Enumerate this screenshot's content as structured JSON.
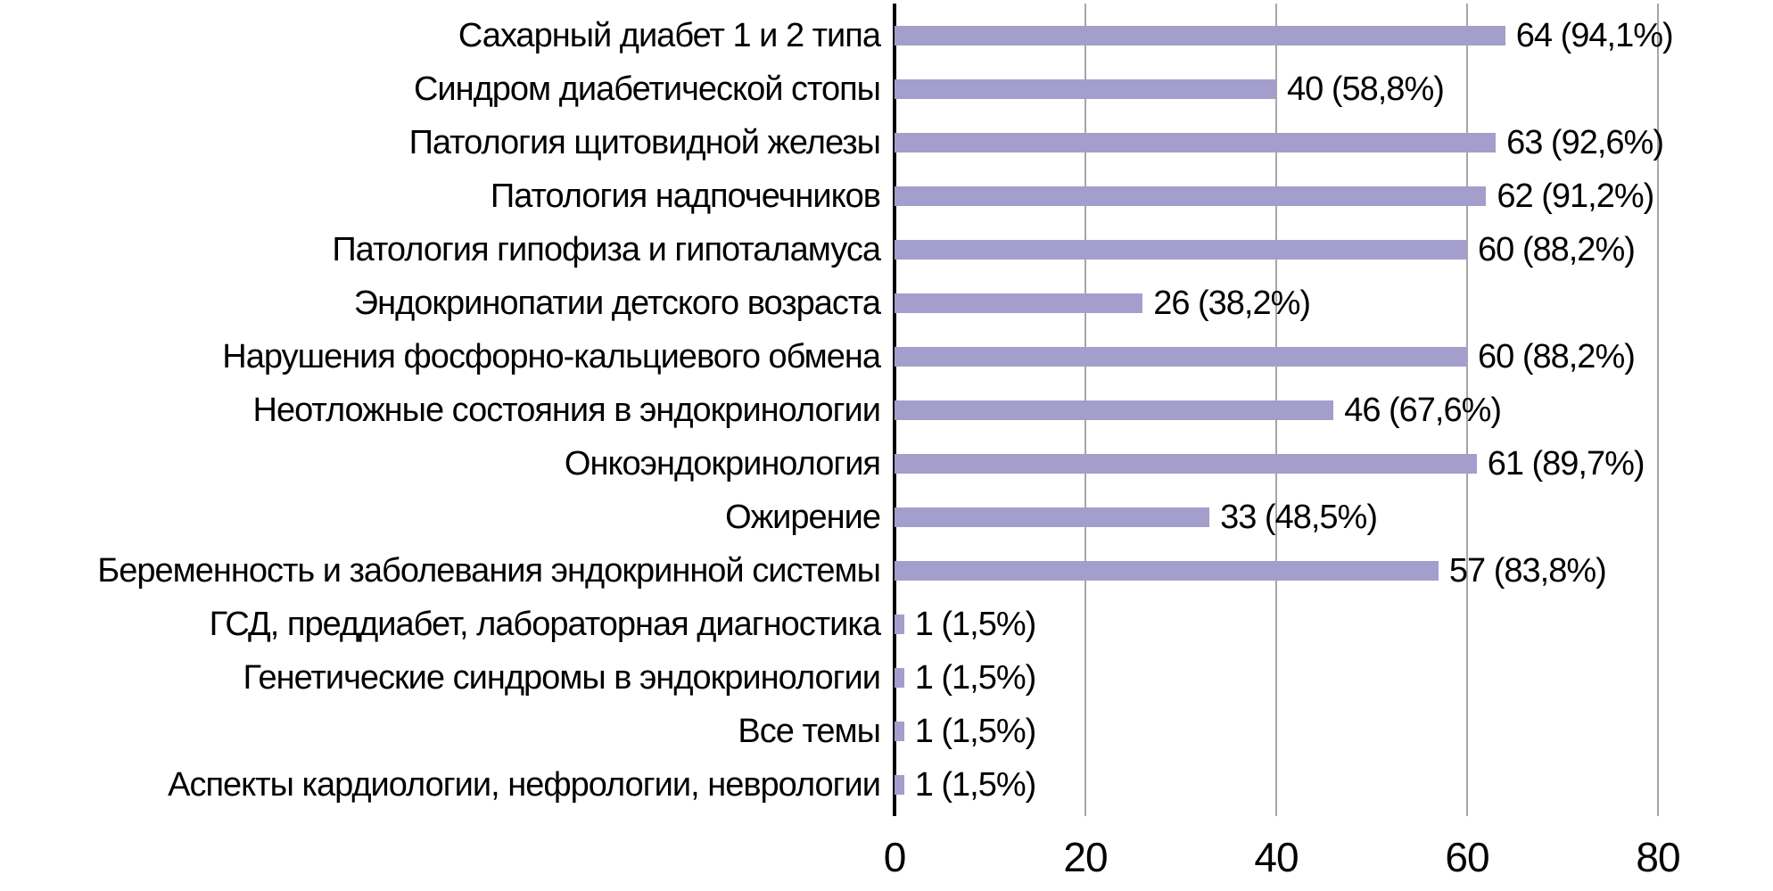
{
  "chart_data": {
    "type": "bar",
    "orientation": "horizontal",
    "title": "",
    "legend": "none",
    "grid": "vertical",
    "categories": [
      "Сахарный диабет 1 и 2 типа",
      "Синдром диабетической стопы",
      "Патология щитовидной железы",
      "Патология надпочечников",
      "Патология гипофиза и гипоталамуса",
      "Эндокринопатии детского возраста",
      "Нарушения фосфорно-кальциевого обмена",
      "Неотложные состояния в эндокринологии",
      "Онкоэндокринология",
      "Ожирение",
      "Беременность и заболевания эндокринной системы",
      "ГСД, преддиабет, лабораторная диагностика",
      "Генетические синдромы в эндокринологии",
      "Все темы",
      "Аспекты кардиологии, нефрологии, неврологии"
    ],
    "values": [
      64,
      40,
      63,
      62,
      60,
      26,
      60,
      46,
      61,
      33,
      57,
      1,
      1,
      1,
      1
    ],
    "value_labels": [
      "64 (94,1%)",
      "40 (58,8%)",
      "63 (92,6%)",
      "62 (91,2%)",
      "60 (88,2%)",
      "26 (38,2%)",
      "60 (88,2%)",
      "46 (67,6%)",
      "61 (89,7%)",
      "33 (48,5%)",
      "57 (83,8%)",
      "1 (1,5%)",
      "1 (1,5%)",
      "1 (1,5%)",
      "1 (1,5%)"
    ],
    "x_ticks": [
      "0",
      "20",
      "40",
      "60",
      "80"
    ],
    "x_tick_values": [
      0,
      20,
      40,
      60,
      80
    ],
    "xlim": [
      0,
      91
    ],
    "bar_color": "#a49ecc",
    "gridline_color": "#a6a6a6",
    "axis_color": "#000000",
    "text_color": "#000000"
  }
}
